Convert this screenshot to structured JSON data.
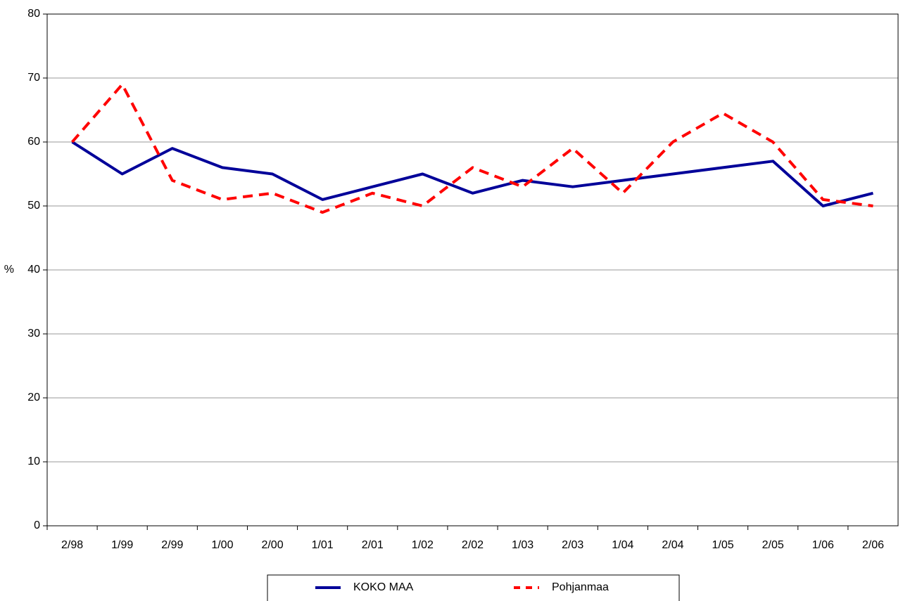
{
  "chart_data": {
    "type": "line",
    "y_label": "%",
    "categories": [
      "2/98",
      "1/99",
      "2/99",
      "1/00",
      "2/00",
      "1/01",
      "2/01",
      "1/02",
      "2/02",
      "1/03",
      "2/03",
      "1/04",
      "2/04",
      "1/05",
      "2/05",
      "1/06",
      "2/06"
    ],
    "series": [
      {
        "name": "KOKO MAA",
        "color": "#000099",
        "line_style": "solid",
        "values": [
          60,
          55,
          59,
          56,
          55,
          51,
          53,
          55,
          52,
          54,
          53,
          54,
          55,
          56,
          57,
          50,
          52
        ]
      },
      {
        "name": "Pohjanmaa",
        "color": "#ff0000",
        "line_style": "dashed",
        "values": [
          60,
          69,
          54,
          51,
          52,
          49,
          52,
          50,
          56,
          53,
          59,
          52,
          60,
          64.5,
          60,
          51,
          50
        ]
      }
    ],
    "ylim": [
      0,
      80
    ],
    "yticks": [
      0,
      10,
      20,
      30,
      40,
      50,
      60,
      70,
      80
    ],
    "grid": true,
    "legend": "bottom"
  }
}
